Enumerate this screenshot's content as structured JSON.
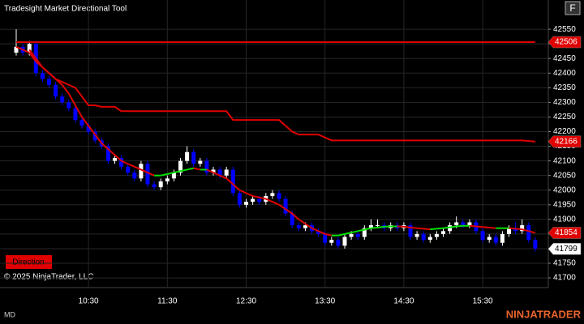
{
  "chart_data": {
    "type": "candlestick",
    "title": "Tradesight Market Directional Tool",
    "categories": [
      null,
      null,
      null,
      null,
      null,
      null,
      null,
      null,
      null,
      null,
      null,
      "10:30",
      null,
      null,
      null,
      null,
      null,
      null,
      null,
      null,
      null,
      null,
      null,
      "11:30",
      null,
      null,
      null,
      null,
      null,
      null,
      null,
      null,
      null,
      null,
      null,
      "12:30",
      null,
      null,
      null,
      null,
      null,
      null,
      null,
      null,
      null,
      null,
      null,
      "13:30",
      null,
      null,
      null,
      null,
      null,
      null,
      null,
      null,
      null,
      null,
      null,
      "14:30",
      null,
      null,
      null,
      null,
      null,
      null,
      null,
      null,
      null,
      null,
      null,
      "15:30",
      null,
      null,
      null,
      null,
      null,
      null,
      null,
      null
    ],
    "open": [
      42470,
      42490,
      42470,
      42500,
      42400,
      42380,
      42360,
      42320,
      42300,
      42280,
      42240,
      42220,
      42200,
      42170,
      42150,
      42100,
      42110,
      42080,
      42060,
      42040,
      42090,
      42020,
      42010,
      42030,
      42040,
      42060,
      42100,
      42130,
      42090,
      42100,
      42060,
      42070,
      42050,
      42070,
      41990,
      41950,
      41960,
      41970,
      41960,
      41980,
      41990,
      41970,
      41920,
      41880,
      41870,
      41880,
      41860,
      41850,
      41820,
      41830,
      41810,
      41840,
      41850,
      41840,
      41870,
      41880,
      41880,
      41870,
      41880,
      41870,
      41880,
      41840,
      41850,
      41830,
      41840,
      41850,
      41860,
      41880,
      41890,
      41880,
      41890,
      41860,
      41830,
      41840,
      41820,
      41850,
      41870,
      41860,
      41880,
      41830
    ],
    "high": [
      42550,
      42500,
      42510,
      42510,
      42410,
      42390,
      42370,
      42330,
      42310,
      42290,
      42250,
      42230,
      42210,
      42180,
      42160,
      42120,
      42120,
      42090,
      42070,
      42100,
      42100,
      42030,
      42040,
      42050,
      42070,
      42110,
      42150,
      42140,
      42110,
      42110,
      42080,
      42080,
      42080,
      42080,
      42000,
      41970,
      41980,
      41980,
      41990,
      42000,
      42000,
      41980,
      41930,
      41890,
      41890,
      41890,
      41870,
      41860,
      41840,
      41840,
      41850,
      41860,
      41860,
      41880,
      41900,
      41900,
      41890,
      41890,
      41890,
      41890,
      41890,
      41860,
      41860,
      41850,
      41860,
      41870,
      41890,
      41910,
      41900,
      41900,
      41900,
      41870,
      41850,
      41850,
      41860,
      41880,
      41890,
      41900,
      41890,
      41840
    ],
    "low": [
      42460,
      42460,
      42460,
      42390,
      42370,
      42350,
      42310,
      42290,
      42270,
      42230,
      42210,
      42190,
      42160,
      42140,
      42090,
      42090,
      42070,
      42050,
      42030,
      42030,
      42010,
      42000,
      42000,
      42020,
      42030,
      42050,
      42090,
      42080,
      42080,
      42050,
      42050,
      42040,
      42040,
      41980,
      41940,
      41940,
      41950,
      41950,
      41950,
      41970,
      41960,
      41910,
      41870,
      41860,
      41860,
      41850,
      41840,
      41810,
      41810,
      41800,
      41800,
      41830,
      41830,
      41830,
      41860,
      41870,
      41860,
      41860,
      41860,
      41860,
      41830,
      41830,
      41820,
      41820,
      41830,
      41840,
      41850,
      41870,
      41870,
      41870,
      41850,
      41820,
      41820,
      41810,
      41810,
      41840,
      41850,
      41850,
      41820,
      41790
    ],
    "close": [
      42490,
      42470,
      42500,
      42400,
      42380,
      42360,
      42320,
      42300,
      42280,
      42240,
      42220,
      42200,
      42170,
      42150,
      42100,
      42110,
      42080,
      42060,
      42040,
      42090,
      42020,
      42010,
      42030,
      42040,
      42060,
      42100,
      42130,
      42090,
      42100,
      42060,
      42070,
      42050,
      42070,
      41990,
      41950,
      41960,
      41970,
      41960,
      41980,
      41990,
      41970,
      41920,
      41880,
      41870,
      41880,
      41860,
      41850,
      41820,
      41830,
      41810,
      41840,
      41850,
      41840,
      41870,
      41880,
      41880,
      41870,
      41880,
      41870,
      41880,
      41840,
      41850,
      41830,
      41840,
      41850,
      41860,
      41880,
      41890,
      41880,
      41890,
      41860,
      41830,
      41840,
      41820,
      41850,
      41870,
      41860,
      41880,
      41830,
      41800
    ],
    "up_color": "#ffffff",
    "down_color": "#0000ff",
    "lines": [
      {
        "color": "#e00000",
        "values": [
          42506,
          42506,
          42506,
          42506,
          42506,
          42506,
          42506,
          42506,
          42506,
          42506,
          42506,
          42506,
          42506,
          42506,
          42506,
          42506,
          42506,
          42506,
          42506,
          42506,
          42506,
          42506,
          42506,
          42506,
          42506,
          42506,
          42506,
          42506,
          42506,
          42506,
          42506,
          42506,
          42506,
          42506,
          42506,
          42506,
          42506,
          42506,
          42506,
          42506,
          42506,
          42506,
          42506,
          42506,
          42506,
          42506,
          42506,
          42506,
          42506,
          42506,
          42506,
          42506,
          42506,
          42506,
          42506,
          42506,
          42506,
          42506,
          42506,
          42506,
          42506,
          42506,
          42506,
          42506,
          42506,
          42506,
          42506,
          42506,
          42506,
          42506,
          42506,
          42506,
          42506,
          42506,
          42506,
          42506,
          42506,
          42506,
          42506,
          42506
        ]
      },
      {
        "color": "#e00000",
        "values": [
          null,
          null,
          42480,
          42450,
          42420,
          42400,
          42380,
          42370,
          42360,
          42350,
          42320,
          42290,
          42290,
          42285,
          42285,
          42285,
          42270,
          42270,
          42270,
          42270,
          42270,
          42270,
          42270,
          42270,
          42270,
          42270,
          42270,
          42270,
          42270,
          42270,
          42270,
          42270,
          42270,
          42240,
          42240,
          42240,
          42240,
          42240,
          42240,
          42240,
          42240,
          42220,
          42200,
          42190,
          42190,
          42190,
          42190,
          42180,
          42170,
          42170,
          42170,
          42170,
          42170,
          42170,
          42170,
          42170,
          42170,
          42170,
          42170,
          42170,
          42170,
          42170,
          42170,
          42170,
          42170,
          42170,
          42170,
          42170,
          42170,
          42170,
          42170,
          42170,
          42170,
          42170,
          42170,
          42170,
          42170,
          42170,
          42168,
          42166
        ]
      },
      {
        "color": "#e00000",
        "rise_color": "#00e000",
        "values": [
          42490,
          42480,
          42470,
          42440,
          42420,
          42400,
          42380,
          42360,
          42330,
          42290,
          42250,
          42220,
          42190,
          42160,
          42140,
          42120,
          42100,
          42090,
          42080,
          42070,
          42060,
          42050,
          42050,
          42055,
          42060,
          42065,
          42070,
          42075,
          42070,
          42070,
          42060,
          42050,
          42040,
          42020,
          42000,
          41990,
          41980,
          41975,
          41970,
          41960,
          41950,
          41935,
          41920,
          41900,
          41885,
          41870,
          41860,
          41850,
          41845,
          41845,
          41850,
          41855,
          41860,
          41865,
          41870,
          41872,
          41875,
          41876,
          41876,
          41875,
          41872,
          41870,
          41868,
          41866,
          41868,
          41870,
          41873,
          41876,
          41878,
          41878,
          41876,
          41874,
          41872,
          41870,
          41870,
          41870,
          41868,
          41866,
          41860,
          41854
        ]
      }
    ],
    "price_markers": [
      {
        "value": 42506,
        "color": "#e00000",
        "text_color": "#ffffff"
      },
      {
        "value": 42166,
        "color": "#e00000",
        "text_color": "#ffffff"
      },
      {
        "value": 41854,
        "color": "#e00000",
        "text_color": "#ffffff"
      },
      {
        "value": 41799,
        "color": "#ffffff",
        "text_color": "#000000"
      }
    ],
    "ylim": [
      41667,
      42650
    ],
    "yticks": [
      42550,
      42500,
      42450,
      42400,
      42350,
      42300,
      42250,
      42200,
      42150,
      42100,
      42050,
      42000,
      41950,
      41900,
      41850,
      41800,
      41750,
      41700
    ],
    "grid": true
  },
  "ui": {
    "button_f": "F",
    "direction_button": "Direction",
    "copyright": "© 2025 NinjaTrader, LLC",
    "status": "MD",
    "brand": "NINJATRADER"
  }
}
